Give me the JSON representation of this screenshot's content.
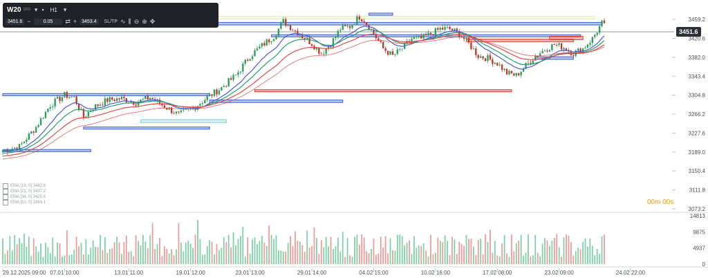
{
  "toolbar": {
    "symbol": "W20",
    "symbol_sub": "CFD",
    "timeframe": "H1",
    "bid": "3451.6",
    "ask": "3453.4",
    "quantity": "0.05",
    "sltp_label": "SL/TP",
    "minus": "−",
    "plus": "+"
  },
  "legend": [
    {
      "label": "EMA [13, 0]  3442.6",
      "color": "#4a5bd6"
    },
    {
      "label": "EMA [21, 0]  3437.2",
      "color": "#22a06b"
    },
    {
      "label": "EMA [34, 0]  3425.5",
      "color": "#e04848"
    },
    {
      "label": "EMA [50, 0]  3394.1",
      "color": "#e04848"
    }
  ],
  "current_price_label": "3451.6",
  "countdown": "00m 00s",
  "chart_data": {
    "type": "candlestick",
    "price_axis": {
      "ticks": [
        "3459.2",
        "3420.6",
        "3382.0",
        "3343.4",
        "3304.8",
        "3266.2",
        "3227.6",
        "3189.0",
        "3150.4",
        "3111.8",
        "3073.2"
      ],
      "range": [
        3073.2,
        3465
      ]
    },
    "volume_axis": {
      "ticks": [
        "14813",
        "9875",
        "4937",
        "0"
      ],
      "range": [
        0,
        14813
      ]
    },
    "time_axis": {
      "ticks": [
        "29.12.2025 09:00",
        "07.01 10:00",
        "13.01 11:00",
        "19.01 12:00",
        "23.01 13:00",
        "29.01 14:00",
        "04.02 15:00",
        "10.02 16:00",
        "17.02 08:00",
        "23.02 09:00",
        "24.02 22:00"
      ]
    },
    "last_price": 3451.6,
    "anchors": [
      [
        0,
        3192
      ],
      [
        7,
        3200
      ],
      [
        14,
        3240
      ],
      [
        20,
        3285
      ],
      [
        26,
        3305
      ],
      [
        30,
        3300
      ],
      [
        34,
        3260
      ],
      [
        38,
        3280
      ],
      [
        44,
        3295
      ],
      [
        50,
        3298
      ],
      [
        56,
        3290
      ],
      [
        62,
        3300
      ],
      [
        68,
        3282
      ],
      [
        74,
        3265
      ],
      [
        80,
        3278
      ],
      [
        86,
        3300
      ],
      [
        92,
        3320
      ],
      [
        98,
        3345
      ],
      [
        104,
        3385
      ],
      [
        110,
        3410
      ],
      [
        114,
        3425
      ],
      [
        118,
        3455
      ],
      [
        122,
        3440
      ],
      [
        126,
        3425
      ],
      [
        130,
        3410
      ],
      [
        134,
        3390
      ],
      [
        138,
        3410
      ],
      [
        142,
        3440
      ],
      [
        146,
        3445
      ],
      [
        150,
        3465
      ],
      [
        152,
        3458
      ],
      [
        156,
        3430
      ],
      [
        160,
        3400
      ],
      [
        164,
        3385
      ],
      [
        168,
        3400
      ],
      [
        172,
        3420
      ],
      [
        176,
        3420
      ],
      [
        180,
        3430
      ],
      [
        184,
        3440
      ],
      [
        188,
        3440
      ],
      [
        192,
        3430
      ],
      [
        196,
        3410
      ],
      [
        200,
        3385
      ],
      [
        204,
        3380
      ],
      [
        208,
        3370
      ],
      [
        212,
        3350
      ],
      [
        216,
        3345
      ],
      [
        220,
        3365
      ],
      [
        224,
        3385
      ],
      [
        228,
        3398
      ],
      [
        232,
        3408
      ],
      [
        236,
        3402
      ],
      [
        240,
        3390
      ],
      [
        244,
        3400
      ],
      [
        248,
        3420
      ],
      [
        252,
        3451.6
      ]
    ],
    "series": [
      {
        "name": "EMA [13, 0]",
        "color": "#4a5bd6",
        "period": 13
      },
      {
        "name": "EMA [21, 0]",
        "color": "#22a06b",
        "period": 21
      },
      {
        "name": "EMA [34, 0]",
        "color": "#e04848",
        "period": 34
      },
      {
        "name": "EMA [50, 0]",
        "color": "#e04848",
        "period": 50
      }
    ],
    "zones": [
      {
        "type": "supply",
        "color": "#e8f0b8",
        "price_top": 3465.5,
        "price_bottom": 3460,
        "x1": 84,
        "x2": 249
      },
      {
        "type": "demand",
        "color": "#4a6fd1",
        "price_top": 3453,
        "price_bottom": 3448,
        "x1": 84,
        "x2": 252
      },
      {
        "type": "demand",
        "color": "#4a6fd1",
        "price_top": 3428,
        "price_bottom": 3424,
        "x1": 113,
        "x2": 243
      },
      {
        "type": "demand",
        "color": "#4a6fd1",
        "price_top": 3308,
        "price_bottom": 3304,
        "x1": 0,
        "x2": 87
      },
      {
        "type": "demand",
        "color": "#4a6fd1",
        "price_top": 3295,
        "price_bottom": 3290,
        "x1": 87,
        "x2": 143
      },
      {
        "type": "demand",
        "color": "#4a6fd1",
        "price_top": 3240,
        "price_bottom": 3236,
        "x1": 34,
        "x2": 87
      },
      {
        "type": "demand",
        "color": "#8ed3d8",
        "price_top": 3255,
        "price_bottom": 3249,
        "x1": 58,
        "x2": 94
      },
      {
        "type": "demand",
        "color": "#4a6fd1",
        "price_top": 3194,
        "price_bottom": 3190,
        "x1": 0,
        "x2": 37
      },
      {
        "type": "supply",
        "color": "#d94b3a",
        "price_top": 3316,
        "price_bottom": 3312,
        "x1": 106,
        "x2": 214
      },
      {
        "type": "supply",
        "color": "#d94b3a",
        "price_top": 3419,
        "price_bottom": 3414,
        "x1": 195,
        "x2": 240
      },
      {
        "type": "supply",
        "color": "#d94b3a",
        "price_top": 3425,
        "price_bottom": 3418,
        "x1": 230,
        "x2": 244
      },
      {
        "type": "demand",
        "color": "#4a6fd1",
        "price_top": 3383,
        "price_bottom": 3378,
        "x1": 224,
        "x2": 240
      },
      {
        "type": "demand",
        "color": "#4a6fd1",
        "price_top": 3472,
        "price_bottom": 3468,
        "x1": 154,
        "x2": 164
      }
    ]
  }
}
